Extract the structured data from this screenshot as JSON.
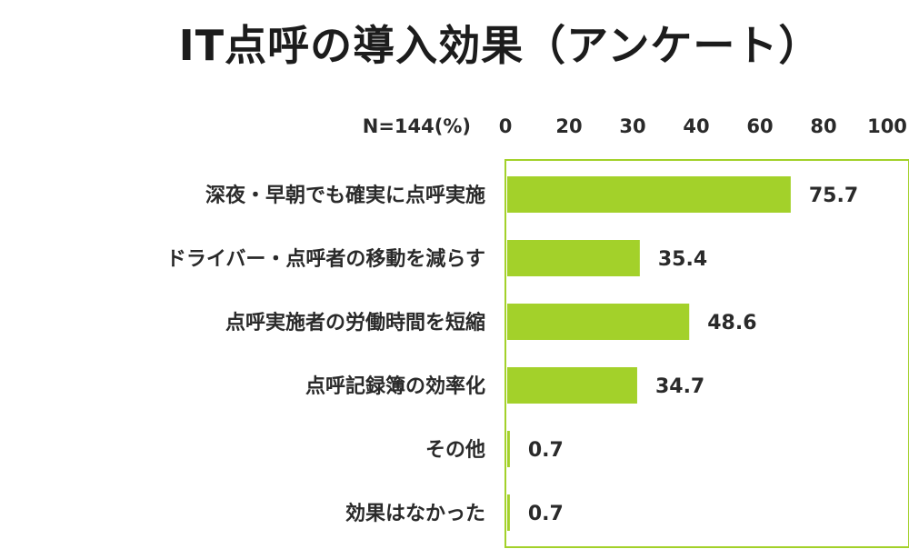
{
  "chart_data": {
    "type": "bar",
    "orientation": "horizontal",
    "title": "IT点呼の導入効果（アンケート）",
    "sample_label": "N=144(%)",
    "categories": [
      "深夜・早朝でも確実に点呼実施",
      "ドライバー・点呼者の移動を減らす",
      "点呼実施者の労働時間を短縮",
      "点呼記録簿の効率化",
      "その他",
      "効果はなかった"
    ],
    "values": [
      75.7,
      35.4,
      48.6,
      34.7,
      0.7,
      0.7
    ],
    "value_labels": [
      "75.7",
      "35.4",
      "48.6",
      "34.7",
      "0.7",
      "0.7"
    ],
    "x_ticks": [
      "0",
      "20",
      "30",
      "40",
      "60",
      "80",
      "100"
    ],
    "xlim": [
      0,
      100
    ],
    "grid": false,
    "bar_color": "#a3d12a",
    "frame_color": "#a3d12a"
  }
}
